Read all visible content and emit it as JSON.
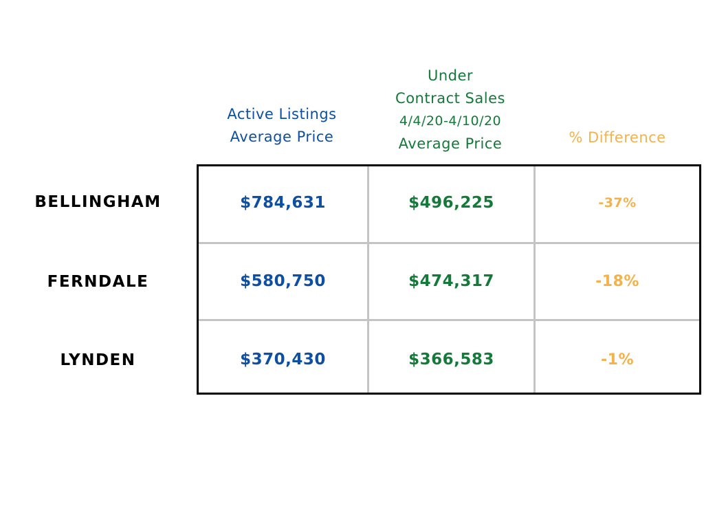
{
  "headers": {
    "active": [
      "Active Listings",
      "Average Price"
    ],
    "under": [
      "Under",
      "Contract Sales",
      "4/4/20-4/10/20",
      "Average Price"
    ],
    "diff": "% Difference"
  },
  "colors": {
    "active": "#0d4fa3",
    "under": "#137a3a",
    "diff": "#f4b24d",
    "city": "#000000"
  },
  "chart_data": {
    "type": "table",
    "columns": [
      "Active Listings Average Price",
      "Under Contract Sales 4/4/20-4/10/20 Average Price",
      "% Difference"
    ],
    "rows": [
      {
        "city": "BELLINGHAM",
        "active": "$784,631",
        "under": "$496,225",
        "diff": "-37%"
      },
      {
        "city": "FERNDALE",
        "active": "$580,750",
        "under": "$474,317",
        "diff": "-18%"
      },
      {
        "city": "LYNDEN",
        "active": "$370,430",
        "under": "$366,583",
        "diff": "-1%"
      }
    ]
  }
}
